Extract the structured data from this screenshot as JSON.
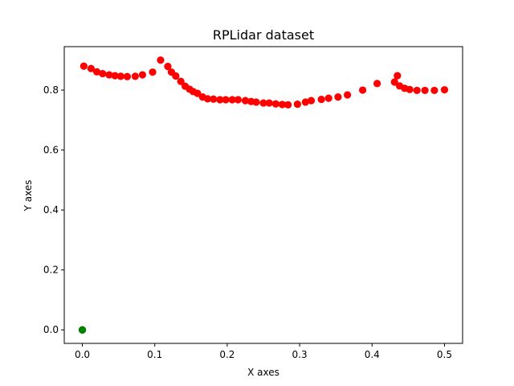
{
  "chart_data": {
    "type": "scatter",
    "title": "RPLidar dataset",
    "xlabel": "X axes",
    "ylabel": "Y axes",
    "xlim": [
      -0.025,
      0.525
    ],
    "ylim": [
      -0.045,
      0.945
    ],
    "xticks": [
      0.0,
      0.1,
      0.2,
      0.3,
      0.4,
      0.5
    ],
    "xtick_labels": [
      "0.0",
      "0.1",
      "0.2",
      "0.3",
      "0.4",
      "0.5"
    ],
    "yticks": [
      0.0,
      0.2,
      0.4,
      0.6,
      0.8
    ],
    "ytick_labels": [
      "0.0",
      "0.2",
      "0.4",
      "0.6",
      "0.8"
    ],
    "grid": false,
    "series": [
      {
        "color": "#ff0000",
        "points": [
          [
            0.002,
            0.88
          ],
          [
            0.012,
            0.872
          ],
          [
            0.02,
            0.861
          ],
          [
            0.028,
            0.855
          ],
          [
            0.037,
            0.851
          ],
          [
            0.045,
            0.848
          ],
          [
            0.053,
            0.846
          ],
          [
            0.062,
            0.845
          ],
          [
            0.073,
            0.846
          ],
          [
            0.083,
            0.851
          ],
          [
            0.097,
            0.86
          ],
          [
            0.108,
            0.9
          ],
          [
            0.118,
            0.879
          ],
          [
            0.123,
            0.86
          ],
          [
            0.129,
            0.847
          ],
          [
            0.136,
            0.829
          ],
          [
            0.142,
            0.813
          ],
          [
            0.148,
            0.803
          ],
          [
            0.153,
            0.795
          ],
          [
            0.159,
            0.789
          ],
          [
            0.166,
            0.777
          ],
          [
            0.173,
            0.771
          ],
          [
            0.181,
            0.77
          ],
          [
            0.19,
            0.768
          ],
          [
            0.198,
            0.768
          ],
          [
            0.207,
            0.768
          ],
          [
            0.215,
            0.768
          ],
          [
            0.225,
            0.765
          ],
          [
            0.233,
            0.762
          ],
          [
            0.24,
            0.76
          ],
          [
            0.25,
            0.757
          ],
          [
            0.258,
            0.757
          ],
          [
            0.267,
            0.754
          ],
          [
            0.276,
            0.752
          ],
          [
            0.284,
            0.751
          ],
          [
            0.297,
            0.753
          ],
          [
            0.308,
            0.76
          ],
          [
            0.316,
            0.765
          ],
          [
            0.33,
            0.769
          ],
          [
            0.34,
            0.773
          ],
          [
            0.353,
            0.777
          ],
          [
            0.366,
            0.784
          ],
          [
            0.387,
            0.8
          ],
          [
            0.407,
            0.822
          ],
          [
            0.431,
            0.827
          ],
          [
            0.435,
            0.848
          ],
          [
            0.438,
            0.814
          ],
          [
            0.445,
            0.806
          ],
          [
            0.452,
            0.802
          ],
          [
            0.462,
            0.799
          ],
          [
            0.473,
            0.799
          ],
          [
            0.486,
            0.799
          ],
          [
            0.5,
            0.801
          ]
        ]
      },
      {
        "color": "#008000",
        "points": [
          [
            0.0,
            0.0
          ],
          [
            0.0,
            0.0
          ],
          [
            0.0,
            0.0
          ]
        ]
      }
    ]
  }
}
